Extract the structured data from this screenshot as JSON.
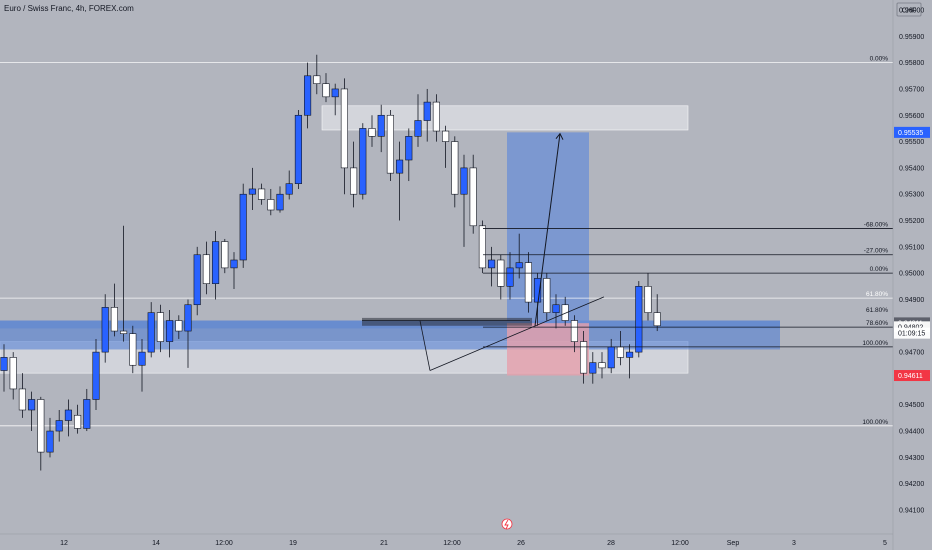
{
  "title": "Euro / Swiss Franc, 4h, FOREX.com",
  "currency": "CHF",
  "colors": {
    "background": "#b2b5be",
    "up_candle": "#2962ff",
    "down_candle": "#ffffff",
    "wick": "#131722",
    "long_target": "#6a8fd6",
    "long_stop": "#e6a0ab",
    "zone_blue": "#4a7ad6",
    "zone_light": "#d7d9df",
    "price_label_blue": "#2962ff",
    "price_label_red": "#f23645",
    "price_label_dark": "#5d606b"
  },
  "chart_data": {
    "type": "candlestick",
    "symbol": "Euro / Swiss Franc",
    "interval": "4h",
    "ylim": [
      0.94,
      0.96
    ],
    "y_ticks": [
      "0.96000",
      "0.95900",
      "0.95800",
      "0.95700",
      "0.95600",
      "0.95500",
      "0.95400",
      "0.95300",
      "0.95200",
      "0.95100",
      "0.95000",
      "0.94900",
      "0.94800",
      "0.94700",
      "0.94600",
      "0.94500",
      "0.94400",
      "0.94300",
      "0.94200",
      "0.94100"
    ],
    "x_ticks": [
      "12",
      "14",
      "12:00",
      "19",
      "21",
      "12:00",
      "26",
      "28",
      "12:00",
      "Sep",
      "3",
      "5"
    ],
    "fib_labels": [
      "0.00%",
      "-68.00%",
      "-27.00%",
      "0.00%",
      "61.80%",
      "61.80%",
      "78.60%",
      "100.00%",
      "100.00%"
    ],
    "price_labels": [
      {
        "text": "0.95535",
        "style": "blue"
      },
      {
        "text": "0.94811",
        "style": "dark"
      },
      {
        "text": "0.94802",
        "style": "white"
      },
      {
        "text": "01:09:15",
        "style": "white"
      },
      {
        "text": "0.94611",
        "style": "red"
      }
    ],
    "candles": [
      [
        0.9463,
        0.9473,
        0.9455,
        0.9468
      ],
      [
        0.9468,
        0.947,
        0.9452,
        0.9456
      ],
      [
        0.9456,
        0.9462,
        0.9445,
        0.9448
      ],
      [
        0.9448,
        0.9455,
        0.944,
        0.9452
      ],
      [
        0.9452,
        0.9453,
        0.9425,
        0.9432
      ],
      [
        0.9432,
        0.9445,
        0.943,
        0.944
      ],
      [
        0.944,
        0.9448,
        0.9436,
        0.9444
      ],
      [
        0.9444,
        0.9452,
        0.9438,
        0.9448
      ],
      [
        0.9446,
        0.945,
        0.9439,
        0.9441
      ],
      [
        0.9441,
        0.9456,
        0.944,
        0.9452
      ],
      [
        0.9452,
        0.9475,
        0.9448,
        0.947
      ],
      [
        0.947,
        0.9492,
        0.9466,
        0.9487
      ],
      [
        0.9487,
        0.9496,
        0.9476,
        0.9478
      ],
      [
        0.9478,
        0.9518,
        0.9474,
        0.9477
      ],
      [
        0.9477,
        0.948,
        0.9462,
        0.9465
      ],
      [
        0.9465,
        0.9475,
        0.9455,
        0.947
      ],
      [
        0.947,
        0.9489,
        0.9468,
        0.9485
      ],
      [
        0.9485,
        0.9488,
        0.947,
        0.9474
      ],
      [
        0.9474,
        0.9486,
        0.9468,
        0.9482
      ],
      [
        0.9482,
        0.9484,
        0.9475,
        0.9478
      ],
      [
        0.9478,
        0.949,
        0.9464,
        0.9488
      ],
      [
        0.9488,
        0.951,
        0.9484,
        0.9507
      ],
      [
        0.9507,
        0.9512,
        0.9492,
        0.9496
      ],
      [
        0.9496,
        0.9516,
        0.949,
        0.9512
      ],
      [
        0.9512,
        0.9513,
        0.95,
        0.9502
      ],
      [
        0.9502,
        0.9508,
        0.9494,
        0.9505
      ],
      [
        0.9505,
        0.9534,
        0.9502,
        0.953
      ],
      [
        0.953,
        0.954,
        0.9524,
        0.9532
      ],
      [
        0.9532,
        0.9534,
        0.9526,
        0.9528
      ],
      [
        0.9528,
        0.9532,
        0.9522,
        0.9524
      ],
      [
        0.9524,
        0.9533,
        0.9523,
        0.953
      ],
      [
        0.953,
        0.9539,
        0.9528,
        0.9534
      ],
      [
        0.9534,
        0.9562,
        0.9532,
        0.956
      ],
      [
        0.956,
        0.958,
        0.9555,
        0.9575
      ],
      [
        0.9575,
        0.9583,
        0.9568,
        0.9572
      ],
      [
        0.9572,
        0.9576,
        0.9565,
        0.9567
      ],
      [
        0.9567,
        0.9572,
        0.956,
        0.957
      ],
      [
        0.957,
        0.9574,
        0.953,
        0.954
      ],
      [
        0.954,
        0.955,
        0.9525,
        0.953
      ],
      [
        0.953,
        0.9557,
        0.9528,
        0.9555
      ],
      [
        0.9555,
        0.956,
        0.9548,
        0.9552
      ],
      [
        0.9552,
        0.9564,
        0.9546,
        0.956
      ],
      [
        0.956,
        0.9562,
        0.9535,
        0.9538
      ],
      [
        0.9538,
        0.955,
        0.952,
        0.9543
      ],
      [
        0.9543,
        0.9555,
        0.9535,
        0.9552
      ],
      [
        0.9552,
        0.9568,
        0.9548,
        0.9558
      ],
      [
        0.9558,
        0.957,
        0.955,
        0.9565
      ],
      [
        0.9565,
        0.9568,
        0.955,
        0.9554
      ],
      [
        0.9554,
        0.9556,
        0.954,
        0.955
      ],
      [
        0.955,
        0.9552,
        0.9525,
        0.953
      ],
      [
        0.953,
        0.9545,
        0.951,
        0.954
      ],
      [
        0.954,
        0.9545,
        0.9515,
        0.9518
      ],
      [
        0.9518,
        0.952,
        0.95,
        0.9502
      ],
      [
        0.9502,
        0.951,
        0.9495,
        0.9505
      ],
      [
        0.9505,
        0.9507,
        0.949,
        0.9495
      ],
      [
        0.9495,
        0.9508,
        0.949,
        0.9502
      ],
      [
        0.9502,
        0.9515,
        0.9498,
        0.9504
      ],
      [
        0.9504,
        0.9508,
        0.9485,
        0.9489
      ],
      [
        0.9489,
        0.95,
        0.948,
        0.9498
      ],
      [
        0.9498,
        0.95,
        0.9482,
        0.9485
      ],
      [
        0.9485,
        0.9492,
        0.9479,
        0.9488
      ],
      [
        0.9488,
        0.9491,
        0.948,
        0.9482
      ],
      [
        0.9482,
        0.9484,
        0.947,
        0.9474
      ],
      [
        0.9474,
        0.9478,
        0.9458,
        0.9462
      ],
      [
        0.9462,
        0.947,
        0.9458,
        0.9466
      ],
      [
        0.9466,
        0.947,
        0.946,
        0.9464
      ],
      [
        0.9464,
        0.9475,
        0.9462,
        0.9472
      ],
      [
        0.9472,
        0.9478,
        0.9465,
        0.9468
      ],
      [
        0.9468,
        0.9473,
        0.946,
        0.947
      ],
      [
        0.947,
        0.9497,
        0.9468,
        0.9495
      ],
      [
        0.9495,
        0.95,
        0.9482,
        0.9485
      ],
      [
        0.9485,
        0.9492,
        0.9478,
        0.948
      ]
    ],
    "x_tick_positions_hint": "ticks aligned to candle indices",
    "tick_candle_index": [
      8,
      19,
      27,
      35,
      45,
      54,
      62,
      72,
      83,
      91,
      99,
      109
    ]
  }
}
